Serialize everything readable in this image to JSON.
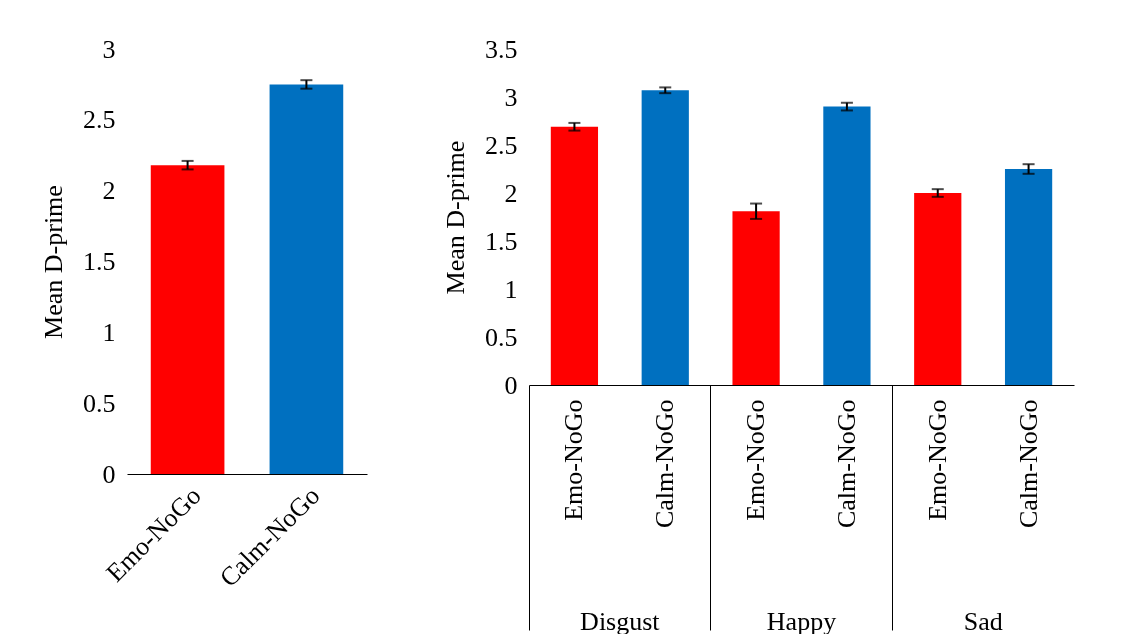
{
  "chart_data": [
    {
      "type": "bar",
      "ylabel": "Mean D-prime",
      "categories": [
        "Emo-NoGo",
        "Calm-NoGo"
      ],
      "values": [
        2.18,
        2.75
      ],
      "colors": [
        "#ff0000",
        "#0070c0"
      ],
      "errors": [
        0.03,
        0.03
      ],
      "ylim": [
        0,
        3
      ],
      "yticks": [
        0,
        0.5,
        1,
        1.5,
        2,
        2.5,
        3
      ],
      "grid": false
    },
    {
      "type": "bar",
      "ylabel": "Mean D-prime",
      "categories": [
        "Emo-NoGo",
        "Calm-NoGo",
        "Emo-NoGo",
        "Calm-NoGo",
        "Emo-NoGo",
        "Calm-NoGo"
      ],
      "values": [
        2.69,
        3.07,
        1.81,
        2.9,
        2.0,
        2.25
      ],
      "colors": [
        "#ff0000",
        "#0070c0",
        "#ff0000",
        "#0070c0",
        "#ff0000",
        "#0070c0"
      ],
      "errors": [
        0.04,
        0.03,
        0.08,
        0.04,
        0.04,
        0.05
      ],
      "ylim": [
        0,
        3.5
      ],
      "yticks": [
        0,
        0.5,
        1,
        1.5,
        2,
        2.5,
        3,
        3.5
      ],
      "grid": false,
      "annotations": [
        "Disgust",
        "Happy",
        "Sad"
      ]
    }
  ]
}
